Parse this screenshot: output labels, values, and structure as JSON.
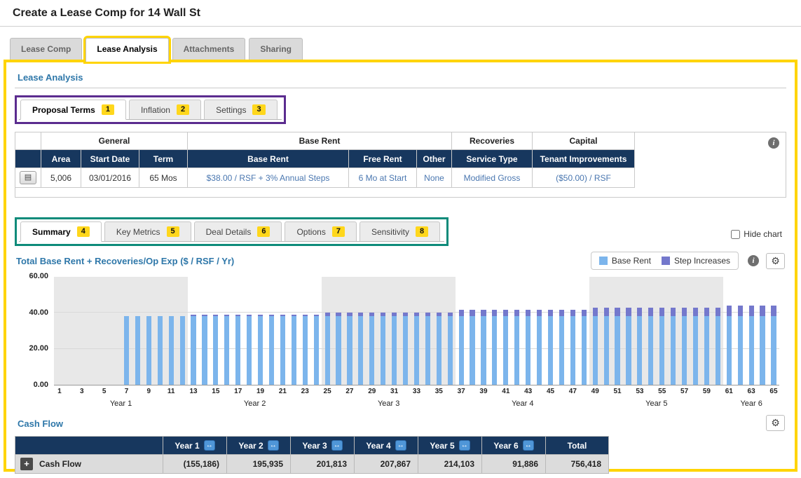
{
  "colors": {
    "highlight_yellow": "#ffd400",
    "annotation_purple": "#5b2c8f",
    "annotation_teal": "#0e8b7a",
    "navy_header": "#17375e",
    "link_blue": "#4a77b0",
    "heading_blue": "#2e77a9",
    "bar_blue": "#7cb5ec",
    "bar_purple": "#7478cc"
  },
  "icons": {
    "info_icon": "i",
    "gear_icon": "⚙",
    "expand_icon": "↔",
    "plus_icon": "+",
    "edit_icon": "▤"
  },
  "header": {
    "title": "Create a Lease Comp for 14 Wall St"
  },
  "main_tabs": [
    {
      "label": "Lease Comp"
    },
    {
      "label": "Lease Analysis"
    },
    {
      "label": "Attachments"
    },
    {
      "label": "Sharing"
    }
  ],
  "lease_analysis": {
    "section_title": "Lease Analysis",
    "proposal_tabs": [
      {
        "label": "Proposal Terms",
        "badge": "1"
      },
      {
        "label": "Inflation",
        "badge": "2"
      },
      {
        "label": "Settings",
        "badge": "3"
      }
    ],
    "analysis_tabs": [
      {
        "label": "Summary",
        "badge": "4"
      },
      {
        "label": "Key Metrics",
        "badge": "5"
      },
      {
        "label": "Deal Details",
        "badge": "6"
      },
      {
        "label": "Options",
        "badge": "7"
      },
      {
        "label": "Sensitivity",
        "badge": "8"
      }
    ],
    "hide_chart_label": "Hide chart"
  },
  "proposal_table": {
    "group_headers": [
      {
        "label": "General"
      },
      {
        "label": "Base Rent"
      },
      {
        "label": "Recoveries"
      },
      {
        "label": "Capital"
      }
    ],
    "columns": [
      "",
      "Area",
      "Start Date",
      "Term",
      "Base Rent",
      "Free Rent",
      "Other",
      "Service Type",
      "Tenant Improvements"
    ],
    "row": {
      "area": "5,006",
      "start_date": "03/01/2016",
      "term": "65 Mos",
      "base_rent": "$38.00 / RSF + 3% Annual Steps",
      "free_rent": "6 Mo at Start",
      "other": "None",
      "service_type": "Modified Gross",
      "tenant_improvements": "($50.00) / RSF"
    }
  },
  "chart_data": {
    "type": "bar",
    "title": "Total Base Rent + Recoveries/Op Exp ($ / RSF / Yr)",
    "legend": [
      {
        "name": "Base Rent",
        "color": "#7cb5ec"
      },
      {
        "name": "Step Increases",
        "color": "#7478cc"
      }
    ],
    "legend_position": "top-right",
    "grid": true,
    "ylim": [
      0,
      60
    ],
    "yticks": [
      {
        "value": 0,
        "label": "0.00"
      },
      {
        "value": 20,
        "label": "20.00"
      },
      {
        "value": 40,
        "label": "40.00"
      },
      {
        "value": 60,
        "label": "60.00"
      }
    ],
    "x_range": [
      1,
      65
    ],
    "x_tick_labels_every": "odd months 1,3,5,...,65",
    "year_bands": [
      {
        "label": "Year 1",
        "start_month": 1,
        "end_month": 12,
        "shaded": true
      },
      {
        "label": "Year 2",
        "start_month": 13,
        "end_month": 24,
        "shaded": false
      },
      {
        "label": "Year 3",
        "start_month": 25,
        "end_month": 36,
        "shaded": true
      },
      {
        "label": "Year 4",
        "start_month": 37,
        "end_month": 48,
        "shaded": false
      },
      {
        "label": "Year 5",
        "start_month": 49,
        "end_month": 60,
        "shaded": true
      },
      {
        "label": "Year 6",
        "start_month": 61,
        "end_month": 65,
        "shaded": false
      }
    ],
    "series": [
      {
        "name": "Base Rent",
        "color": "#7cb5ec",
        "values": [
          0,
          0,
          0,
          0,
          0,
          0,
          38,
          38,
          38,
          38,
          38,
          38,
          38,
          38,
          38,
          38,
          38,
          38,
          38,
          38,
          38,
          38,
          38,
          38,
          38,
          38,
          38,
          38,
          38,
          38,
          38,
          38,
          38,
          38,
          38,
          38,
          38,
          38,
          38,
          38,
          38,
          38,
          38,
          38,
          38,
          38,
          38,
          38,
          38,
          38,
          38,
          38,
          38,
          38,
          38,
          38,
          38,
          38,
          38,
          38,
          38,
          38,
          38,
          38,
          38
        ]
      },
      {
        "name": "Step Increases",
        "color": "#7478cc",
        "values": [
          0,
          0,
          0,
          0,
          0,
          0,
          0,
          0,
          0,
          0,
          0,
          0,
          1.14,
          1.14,
          1.14,
          1.14,
          1.14,
          1.14,
          1.14,
          1.14,
          1.14,
          1.14,
          1.14,
          1.14,
          2.31,
          2.31,
          2.31,
          2.31,
          2.31,
          2.31,
          2.31,
          2.31,
          2.31,
          2.31,
          2.31,
          2.31,
          3.52,
          3.52,
          3.52,
          3.52,
          3.52,
          3.52,
          3.52,
          3.52,
          3.52,
          3.52,
          3.52,
          3.52,
          4.77,
          4.77,
          4.77,
          4.77,
          4.77,
          4.77,
          4.77,
          4.77,
          4.77,
          4.77,
          4.77,
          4.77,
          6.05,
          6.05,
          6.05,
          6.05,
          6.05
        ]
      }
    ]
  },
  "cash_flow": {
    "section_title": "Cash Flow",
    "columns": [
      "Year 1",
      "Year 2",
      "Year 3",
      "Year 4",
      "Year 5",
      "Year 6",
      "Total"
    ],
    "rows": [
      {
        "label": "Cash Flow",
        "values": [
          "(155,186)",
          "195,935",
          "201,813",
          "207,867",
          "214,103",
          "91,886",
          "756,418"
        ]
      }
    ]
  }
}
